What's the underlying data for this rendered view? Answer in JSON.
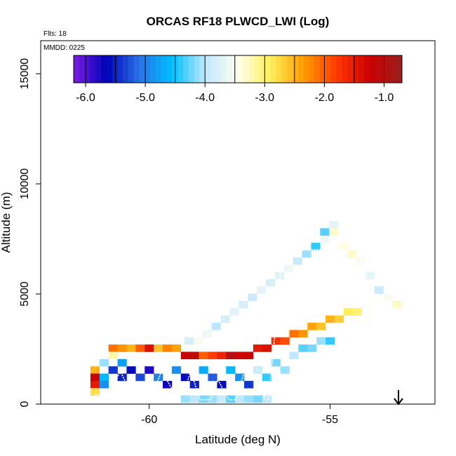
{
  "chart_data": {
    "type": "heatmap",
    "title": "ORCAS RF18 PLWCD_LWI (Log)",
    "annotations": {
      "flights": "Flts: 18",
      "date": "MMDD: 0225"
    },
    "xlabel": "Latitude (deg N)",
    "ylabel": "Altitude (m)",
    "xlim": [
      -63.0,
      -52.1
    ],
    "ylim": [
      0,
      16500
    ],
    "x_ticks": [
      -60,
      -55
    ],
    "x_tick_labels": [
      "-60",
      "-55"
    ],
    "y_ticks": [
      0,
      5000,
      10000,
      15000
    ],
    "y_tick_labels": [
      "0",
      "5000",
      "10000",
      "15000"
    ],
    "colorbar": {
      "min": -6.2,
      "max": -0.7,
      "ticks": [
        -6.0,
        -5.0,
        -4.0,
        -3.0,
        -2.0,
        -1.0
      ],
      "tick_labels": [
        "-6.0",
        "-5.0",
        "-4.0",
        "-3.0",
        "-2.0",
        "-1.0"
      ],
      "colors": [
        "#7a1ee0",
        "#0000b8",
        "#2a73e6",
        "#00bfff",
        "#bfe7ff",
        "#fffff0",
        "#ffef5a",
        "#ff9d00",
        "#ff3a00",
        "#cc0000",
        "#992020"
      ]
    },
    "cell_size": {
      "dlat": 0.25,
      "dalt": 330
    },
    "cells": [
      [
        -54.9,
        8150,
        -3.7
      ],
      [
        -54.9,
        7820,
        -3.3
      ],
      [
        -55.15,
        7490,
        -3.6
      ],
      [
        -55.15,
        7820,
        -4.3
      ],
      [
        -55.4,
        7160,
        -4.4
      ],
      [
        -55.65,
        6830,
        -4.1
      ],
      [
        -55.9,
        6500,
        -3.9
      ],
      [
        -56.15,
        6170,
        -3.6
      ],
      [
        -56.4,
        5840,
        -3.7
      ],
      [
        -56.65,
        5510,
        -3.8
      ],
      [
        -56.9,
        5180,
        -3.7
      ],
      [
        -57.15,
        4850,
        -3.9
      ],
      [
        -57.4,
        4520,
        -3.8
      ],
      [
        -57.65,
        4190,
        -3.7
      ],
      [
        -57.9,
        3860,
        -3.8
      ],
      [
        -58.15,
        3530,
        -4.0
      ],
      [
        -58.4,
        3200,
        -3.6
      ],
      [
        -58.65,
        2870,
        -3.5
      ],
      [
        -58.9,
        2870,
        -3.8
      ],
      [
        -54.65,
        7160,
        -3.4
      ],
      [
        -54.4,
        6830,
        -3.3
      ],
      [
        -54.15,
        6500,
        -3.5
      ],
      [
        -53.9,
        5840,
        -3.7
      ],
      [
        -53.65,
        5180,
        -3.9
      ],
      [
        -53.4,
        4850,
        -3.5
      ],
      [
        -53.15,
        4520,
        -3.3
      ],
      [
        -61.0,
        2540,
        -2.1
      ],
      [
        -60.75,
        2540,
        -2.3
      ],
      [
        -60.5,
        2540,
        -2.5
      ],
      [
        -60.25,
        2540,
        -2.0
      ],
      [
        -60.0,
        2540,
        -1.4
      ],
      [
        -59.75,
        2540,
        -2.6
      ],
      [
        -59.5,
        2540,
        -2.2
      ],
      [
        -59.25,
        2540,
        -2.4
      ],
      [
        -59.0,
        2210,
        -1.2
      ],
      [
        -58.75,
        2210,
        -1.1
      ],
      [
        -58.5,
        2210,
        -2.0
      ],
      [
        -58.25,
        2210,
        -1.8
      ],
      [
        -58.0,
        2210,
        -1.6
      ],
      [
        -57.75,
        2210,
        -1.0
      ],
      [
        -57.5,
        2210,
        -1.3
      ],
      [
        -57.25,
        2210,
        -1.2
      ],
      [
        -57.0,
        2540,
        -1.5
      ],
      [
        -56.75,
        2540,
        -1.4
      ],
      [
        -56.5,
        2870,
        -1.7
      ],
      [
        -56.25,
        2870,
        -1.9
      ],
      [
        -56.0,
        3200,
        -2.1
      ],
      [
        -55.75,
        3200,
        -2.3
      ],
      [
        -55.5,
        3530,
        -2.4
      ],
      [
        -55.25,
        3530,
        -2.6
      ],
      [
        -55.0,
        3860,
        -2.5
      ],
      [
        -54.75,
        3860,
        -2.7
      ],
      [
        -54.5,
        4190,
        -2.9
      ],
      [
        -54.25,
        4190,
        -3.0
      ],
      [
        -61.5,
        1550,
        -2.5
      ],
      [
        -61.5,
        1220,
        -1.2
      ],
      [
        -61.5,
        890,
        -1.5
      ],
      [
        -61.5,
        560,
        -2.8
      ],
      [
        -61.25,
        1880,
        -4.1
      ],
      [
        -61.25,
        1220,
        -4.6
      ],
      [
        -61.25,
        890,
        -4.9
      ],
      [
        -61.0,
        2210,
        -3.2
      ],
      [
        -61.0,
        1550,
        -5.4
      ],
      [
        -60.75,
        1880,
        -4.8
      ],
      [
        -60.75,
        1220,
        -5.5
      ],
      [
        -60.5,
        1550,
        -5.6
      ],
      [
        -60.25,
        1220,
        -5.3
      ],
      [
        -60.0,
        1550,
        -5.8
      ],
      [
        -59.75,
        1220,
        -5.0
      ],
      [
        -59.5,
        890,
        -5.7
      ],
      [
        -59.25,
        1550,
        -4.9
      ],
      [
        -59.0,
        1220,
        -5.6
      ],
      [
        -58.75,
        890,
        -5.5
      ],
      [
        -58.5,
        1550,
        -4.7
      ],
      [
        -58.25,
        1220,
        -5.2
      ],
      [
        -58.0,
        890,
        -5.6
      ],
      [
        -57.75,
        1550,
        -4.6
      ],
      [
        -57.5,
        1220,
        -4.9
      ],
      [
        -57.25,
        890,
        -5.4
      ],
      [
        -57.0,
        1550,
        -3.9
      ],
      [
        -56.75,
        1220,
        -4.4
      ],
      [
        -56.5,
        1880,
        -4.2
      ],
      [
        -56.25,
        1550,
        -4.1
      ],
      [
        -56.0,
        2210,
        -4.0
      ],
      [
        -55.75,
        2540,
        -4.3
      ],
      [
        -55.5,
        2540,
        -4.2
      ],
      [
        -55.25,
        2870,
        -4.1
      ],
      [
        -55.0,
        2870,
        -4.4
      ],
      [
        -59.0,
        230,
        -4.1
      ],
      [
        -58.75,
        230,
        -4.0
      ],
      [
        -58.5,
        230,
        -4.2
      ],
      [
        -58.25,
        230,
        -4.1
      ],
      [
        -58.0,
        230,
        -3.9
      ],
      [
        -57.75,
        230,
        -4.3
      ],
      [
        -57.5,
        230,
        -4.0
      ],
      [
        -57.25,
        230,
        -4.1
      ],
      [
        -57.0,
        230,
        -4.2
      ],
      [
        -56.75,
        230,
        -4.0
      ]
    ]
  }
}
